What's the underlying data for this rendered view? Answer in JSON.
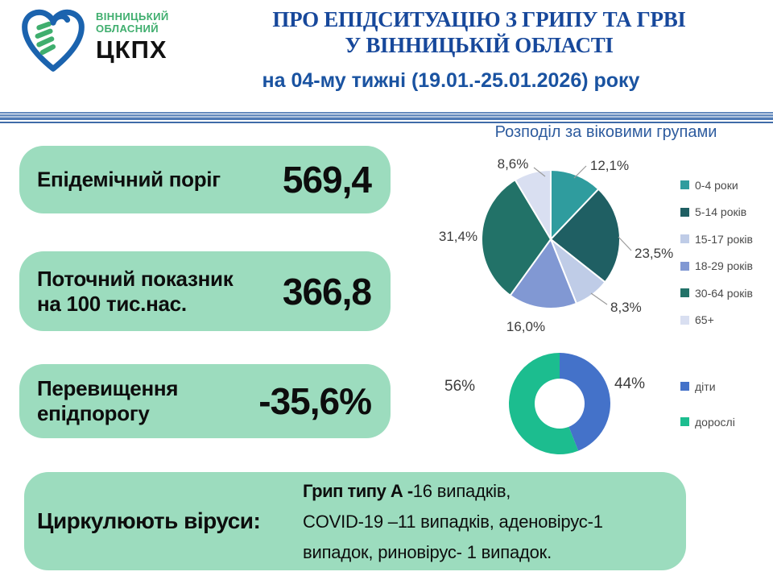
{
  "logo": {
    "org_line1": "ВІННИЦЬКИЙ",
    "org_line2": "ОБЛАСНИЙ",
    "org_abbr": "ЦКПХ",
    "brand_blue": "#1B63AE",
    "brand_green": "#3FAE6E"
  },
  "header": {
    "title_line1": "ПРО ЕПІДСИТУАЦІЮ З ГРИПУ ТА ГРВІ",
    "title_line2": "У ВІННИЦЬКІЙ ОБЛАСТІ",
    "subtitle": "на 04-му тижні (19.01.-25.01.2026) року"
  },
  "stat_cards": {
    "card_color": "#9CDCBE",
    "threshold": {
      "label": "Епідемічний поріг",
      "value": "569,4"
    },
    "current": {
      "label_line1": "Поточний показник",
      "label_line2": "на 100 тис.нас.",
      "value": "366,8"
    },
    "excess": {
      "label_line1": "Перевищення",
      "label_line2": "епідпорогу",
      "value": "-35,6%"
    }
  },
  "virus_card": {
    "label": "Циркулюють віруси:",
    "line1_bold": "Грип типу А -",
    "line1_rest": "16 випадків,",
    "line2": "COVID-19 –11 випадків, аденовірус-1",
    "line3": "випадок, риновірус- 1 випадок."
  },
  "chart_data": [
    {
      "type": "pie",
      "title": "Розподіл за віковими групами",
      "categories": [
        "0-4 роки",
        "5-14 років",
        "15-17 років",
        "18-29 років",
        "30-64 років",
        "65+"
      ],
      "values": [
        12.1,
        23.5,
        8.3,
        16.0,
        31.4,
        8.6
      ],
      "display_labels": [
        "12,1%",
        "23,5%",
        "8,3%",
        "16,0%",
        "31,4%",
        "8,6%"
      ],
      "colors": [
        "#2F9C9E",
        "#1F5F63",
        "#BFCCE7",
        "#8198D3",
        "#227268",
        "#D9DFF1"
      ],
      "legend_position": "right",
      "start_angle_deg": 0,
      "direction": "clockwise"
    },
    {
      "type": "pie",
      "subtype": "donut",
      "title": "",
      "categories": [
        "діти",
        "дорослі"
      ],
      "values": [
        44,
        56
      ],
      "display_labels": [
        "44%",
        "56%"
      ],
      "colors": [
        "#4472C9",
        "#1CBD8F"
      ],
      "legend_position": "right",
      "start_angle_deg": 0,
      "direction": "clockwise"
    }
  ]
}
